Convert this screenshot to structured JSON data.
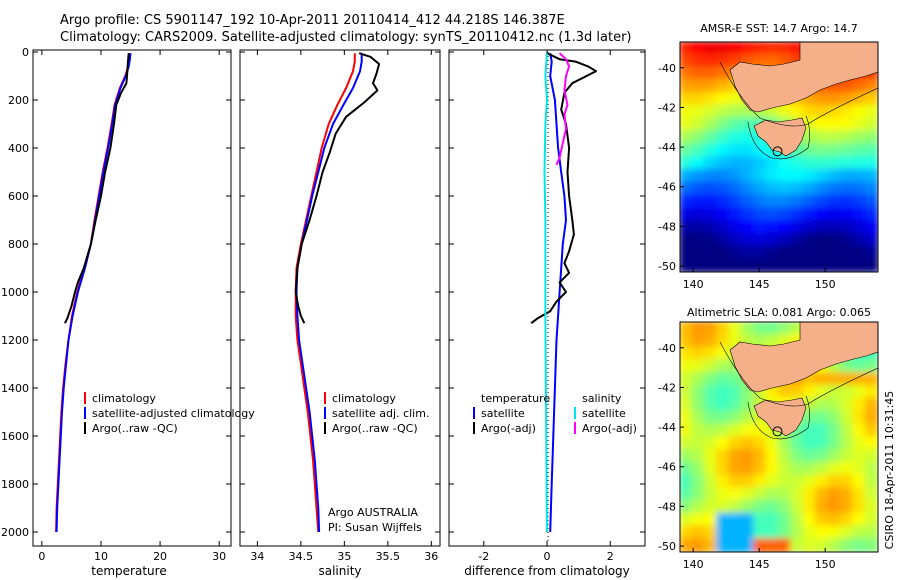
{
  "header": {
    "line1": "Argo profile: CS 5901147_192 10-Apr-2011 20110414_412 44.218S 146.387E",
    "line2": "Climatology: CARS2009. Satellite-adjusted climatology: synTS_20110412.nc (1.3d later)"
  },
  "footer_credit": "CSIRO 18-Apr-2011 10:31:45",
  "colors": {
    "climatology": "#ff0000",
    "satellite": "#0000ff",
    "argo": "#000000",
    "sat_diff_sal": "#00e5e5",
    "argo_diff_sal": "#ff00ff",
    "land": "#f5b08a"
  },
  "chart_data": [
    {
      "type": "line",
      "id": "temperature",
      "xlabel": "temperature",
      "ylabel": "",
      "xlim": [
        -1.5,
        32
      ],
      "ylim": [
        2050,
        0
      ],
      "x_ticks": [
        0,
        10,
        20,
        30
      ],
      "y_ticks": [
        0,
        200,
        400,
        600,
        800,
        1000,
        1200,
        1400,
        1600,
        1800,
        2000
      ],
      "legend": [
        "climatology",
        "satellite-adjusted climatology",
        "Argo(..raw -QC)"
      ],
      "series": [
        {
          "name": "climatology",
          "color": "#ff0000",
          "points": [
            [
              14.9,
              5
            ],
            [
              14.8,
              30
            ],
            [
              14.6,
              60
            ],
            [
              14.1,
              100
            ],
            [
              13.2,
              150
            ],
            [
              12.3,
              220
            ],
            [
              11.8,
              300
            ],
            [
              11.1,
              400
            ],
            [
              10.3,
              500
            ],
            [
              9.6,
              600
            ],
            [
              8.9,
              700
            ],
            [
              8.3,
              800
            ],
            [
              7.2,
              900
            ],
            [
              6.0,
              1000
            ],
            [
              5.1,
              1100
            ],
            [
              4.5,
              1200
            ],
            [
              4.0,
              1300
            ],
            [
              3.6,
              1400
            ],
            [
              3.3,
              1500
            ],
            [
              3.1,
              1600
            ],
            [
              2.9,
              1700
            ],
            [
              2.7,
              1800
            ],
            [
              2.5,
              1900
            ],
            [
              2.4,
              2000
            ]
          ]
        },
        {
          "name": "satellite-adjusted climatology",
          "color": "#0000ff",
          "points": [
            [
              15.0,
              5
            ],
            [
              14.9,
              30
            ],
            [
              14.7,
              60
            ],
            [
              14.2,
              100
            ],
            [
              13.3,
              150
            ],
            [
              12.4,
              220
            ],
            [
              11.9,
              300
            ],
            [
              11.2,
              400
            ],
            [
              10.4,
              500
            ],
            [
              9.7,
              600
            ],
            [
              9.0,
              700
            ],
            [
              8.3,
              800
            ],
            [
              7.3,
              900
            ],
            [
              6.1,
              1000
            ],
            [
              5.2,
              1100
            ],
            [
              4.5,
              1200
            ],
            [
              4.1,
              1300
            ],
            [
              3.7,
              1400
            ],
            [
              3.4,
              1500
            ],
            [
              3.2,
              1600
            ],
            [
              3.0,
              1700
            ],
            [
              2.8,
              1800
            ],
            [
              2.6,
              1900
            ],
            [
              2.5,
              2000
            ]
          ]
        },
        {
          "name": "Argo(..raw -QC)",
          "color": "#000000",
          "points": [
            [
              14.7,
              5
            ],
            [
              14.6,
              30
            ],
            [
              14.5,
              60
            ],
            [
              14.4,
              100
            ],
            [
              14.3,
              130
            ],
            [
              13.4,
              170
            ],
            [
              12.6,
              220
            ],
            [
              12.2,
              300
            ],
            [
              11.6,
              400
            ],
            [
              10.7,
              500
            ],
            [
              10.0,
              600
            ],
            [
              9.1,
              700
            ],
            [
              8.3,
              800
            ],
            [
              7.1,
              900
            ],
            [
              6.1,
              960
            ],
            [
              5.6,
              1000
            ],
            [
              5.0,
              1060
            ],
            [
              4.3,
              1110
            ],
            [
              3.9,
              1130
            ]
          ]
        }
      ]
    },
    {
      "type": "line",
      "id": "salinity",
      "xlabel": "salinity",
      "ylabel": "",
      "xlim": [
        33.8,
        36.1
      ],
      "ylim": [
        2050,
        0
      ],
      "x_ticks": [
        34,
        34.5,
        35,
        35.5,
        36
      ],
      "x_tick_labels": [
        "34",
        "34.5",
        "35",
        "35.5",
        "36"
      ],
      "legend": [
        "climatology",
        "satellite adj. clim.",
        "Argo(..raw -QC)"
      ],
      "annotation": [
        "Argo AUSTRALIA",
        "PI: Susan Wijffels"
      ],
      "series": [
        {
          "name": "climatology",
          "color": "#ff0000",
          "points": [
            [
              35.12,
              5
            ],
            [
              35.12,
              40
            ],
            [
              35.1,
              80
            ],
            [
              35.02,
              150
            ],
            [
              34.92,
              220
            ],
            [
              34.82,
              300
            ],
            [
              34.74,
              400
            ],
            [
              34.68,
              500
            ],
            [
              34.62,
              600
            ],
            [
              34.56,
              700
            ],
            [
              34.5,
              800
            ],
            [
              34.45,
              900
            ],
            [
              34.44,
              1000
            ],
            [
              34.44,
              1100
            ],
            [
              34.46,
              1200
            ],
            [
              34.5,
              1300
            ],
            [
              34.54,
              1400
            ],
            [
              34.58,
              1500
            ],
            [
              34.61,
              1600
            ],
            [
              34.64,
              1700
            ],
            [
              34.66,
              1800
            ],
            [
              34.68,
              1900
            ],
            [
              34.7,
              2000
            ]
          ]
        },
        {
          "name": "satellite adj. clim.",
          "color": "#0000ff",
          "points": [
            [
              35.2,
              5
            ],
            [
              35.2,
              40
            ],
            [
              35.18,
              80
            ],
            [
              35.1,
              150
            ],
            [
              34.99,
              220
            ],
            [
              34.87,
              300
            ],
            [
              34.77,
              400
            ],
            [
              34.7,
              500
            ],
            [
              34.63,
              600
            ],
            [
              34.57,
              700
            ],
            [
              34.51,
              800
            ],
            [
              34.46,
              900
            ],
            [
              34.45,
              1000
            ],
            [
              34.46,
              1100
            ],
            [
              34.48,
              1200
            ],
            [
              34.52,
              1300
            ],
            [
              34.56,
              1400
            ],
            [
              34.6,
              1500
            ],
            [
              34.63,
              1600
            ],
            [
              34.66,
              1700
            ],
            [
              34.68,
              1800
            ],
            [
              34.7,
              1900
            ],
            [
              34.71,
              2000
            ]
          ]
        },
        {
          "name": "Argo(..raw -QC)",
          "color": "#000000",
          "points": [
            [
              35.17,
              5
            ],
            [
              35.3,
              20
            ],
            [
              35.4,
              50
            ],
            [
              35.37,
              90
            ],
            [
              35.33,
              130
            ],
            [
              35.38,
              160
            ],
            [
              35.23,
              210
            ],
            [
              35.02,
              270
            ],
            [
              34.9,
              340
            ],
            [
              34.83,
              420
            ],
            [
              34.75,
              500
            ],
            [
              34.68,
              600
            ],
            [
              34.6,
              700
            ],
            [
              34.51,
              800
            ],
            [
              34.46,
              900
            ],
            [
              34.44,
              1000
            ],
            [
              34.47,
              1060
            ],
            [
              34.5,
              1100
            ],
            [
              34.54,
              1130
            ]
          ]
        }
      ]
    },
    {
      "type": "line",
      "id": "difference",
      "xlabel": "difference from climatology",
      "ylabel": "",
      "xlim": [
        -3.1,
        3.1
      ],
      "ylim": [
        2050,
        0
      ],
      "x_ticks": [
        -2,
        0,
        2
      ],
      "legend_left_title": "temperature",
      "legend_right_title": "salinity",
      "legend": [
        "satellite",
        "Argo(-adj)",
        "satellite",
        "Argo(-adj)"
      ],
      "series": [
        {
          "name": "temperature satellite",
          "color": "#0000ff",
          "points": [
            [
              0.1,
              5
            ],
            [
              0.15,
              40
            ],
            [
              0.1,
              100
            ],
            [
              0.25,
              200
            ],
            [
              0.3,
              300
            ],
            [
              0.35,
              400
            ],
            [
              0.45,
              500
            ],
            [
              0.55,
              600
            ],
            [
              0.6,
              700
            ],
            [
              0.5,
              800
            ],
            [
              0.45,
              900
            ],
            [
              0.4,
              1000
            ],
            [
              0.35,
              1100
            ],
            [
              0.3,
              1200
            ],
            [
              0.25,
              1400
            ],
            [
              0.2,
              1600
            ],
            [
              0.15,
              1800
            ],
            [
              0.1,
              2000
            ]
          ]
        },
        {
          "name": "temperature Argo(-adj)",
          "color": "#000000",
          "points": [
            [
              0.0,
              5
            ],
            [
              0.4,
              30
            ],
            [
              0.9,
              40
            ],
            [
              1.3,
              60
            ],
            [
              1.55,
              80
            ],
            [
              1.25,
              100
            ],
            [
              0.8,
              130
            ],
            [
              0.55,
              170
            ],
            [
              0.45,
              240
            ],
            [
              0.6,
              300
            ],
            [
              0.7,
              400
            ],
            [
              0.65,
              500
            ],
            [
              0.7,
              600
            ],
            [
              0.8,
              700
            ],
            [
              0.85,
              760
            ],
            [
              0.7,
              830
            ],
            [
              0.55,
              880
            ],
            [
              0.7,
              920
            ],
            [
              0.4,
              960
            ],
            [
              0.6,
              1000
            ],
            [
              0.3,
              1040
            ],
            [
              0.1,
              1080
            ],
            [
              -0.3,
              1110
            ],
            [
              -0.5,
              1130
            ]
          ]
        },
        {
          "name": "salinity satellite",
          "color": "#00e5e5",
          "points": [
            [
              0.0,
              5
            ],
            [
              -0.05,
              100
            ],
            [
              0.0,
              200
            ],
            [
              -0.05,
              300
            ],
            [
              -0.08,
              500
            ],
            [
              -0.05,
              700
            ],
            [
              -0.05,
              900
            ],
            [
              -0.05,
              1100
            ],
            [
              -0.04,
              1300
            ],
            [
              -0.03,
              1500
            ],
            [
              -0.02,
              1700
            ],
            [
              -0.01,
              1900
            ],
            [
              0.0,
              2000
            ]
          ]
        },
        {
          "name": "salinity Argo(-adj)",
          "color": "#ff00ff",
          "points": [
            [
              0.4,
              5
            ],
            [
              0.6,
              30
            ],
            [
              0.7,
              60
            ],
            [
              0.6,
              100
            ],
            [
              0.55,
              160
            ],
            [
              0.65,
              220
            ],
            [
              0.55,
              260
            ],
            [
              0.6,
              320
            ],
            [
              0.5,
              380
            ],
            [
              0.4,
              440
            ],
            [
              0.3,
              470
            ]
          ]
        }
      ]
    },
    {
      "type": "heatmap",
      "id": "sst_map",
      "title": "AMSR-E SST: 14.7 Argo: 14.7",
      "xlim": [
        139,
        154
      ],
      "ylim": [
        -50.3,
        -38.7
      ],
      "x_ticks": [
        140,
        145,
        150
      ],
      "y_ticks": [
        -40,
        -42,
        -44,
        -46,
        -48,
        -50
      ],
      "argo_position": [
        146.387,
        -44.218
      ]
    },
    {
      "type": "heatmap",
      "id": "sla_map",
      "title": "Altimetric SLA: 0.081 Argo: 0.065",
      "xlim": [
        139,
        154
      ],
      "ylim": [
        -50.3,
        -38.7
      ],
      "x_ticks": [
        140,
        145,
        150
      ],
      "y_ticks": [
        -40,
        -42,
        -44,
        -46,
        -48,
        -50
      ],
      "argo_position": [
        146.387,
        -44.218
      ]
    }
  ],
  "legend_text": {
    "temp": [
      "climatology",
      "satellite-adjusted climatology",
      "Argo(..raw -QC)"
    ],
    "sal": [
      "climatology",
      "satellite adj. clim.",
      "Argo(..raw -QC)"
    ],
    "diff_temp_title": "temperature",
    "diff_sal_title": "salinity",
    "diff_items": [
      "satellite",
      "Argo(-adj)",
      "satellite",
      "Argo(-adj)"
    ],
    "argo_center": "Argo AUSTRALIA",
    "argo_pi": "PI: Susan Wijffels"
  }
}
